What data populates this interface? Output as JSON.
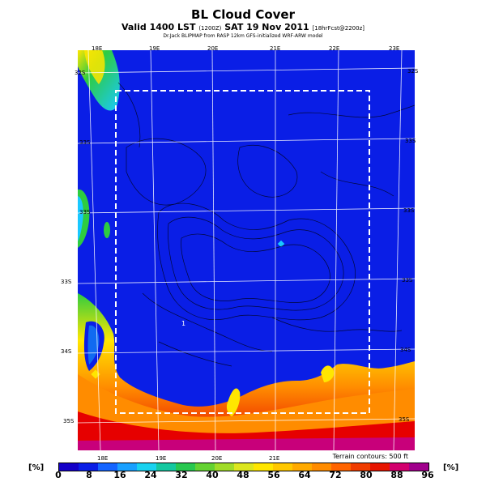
{
  "header": {
    "title": "BL Cloud Cover",
    "valid_prefix": "Valid 1400 LST",
    "valid_utc": "(1200Z)",
    "valid_date": "SAT 19 Nov 2011",
    "valid_suffix": "[18hrFcst@2200z]",
    "credit": "Dr.Jack BLIPMAP from RASP 12km GFS-initialized WRF-ARW model"
  },
  "map": {
    "lon_labels_top": [
      "18E",
      "19E",
      "20E",
      "21E",
      "22E",
      "23E"
    ],
    "lon_labels_bottom": [
      "18E",
      "19E",
      "20E",
      "21E"
    ],
    "lat_labels_left": [
      "32S",
      "33S",
      "33S",
      "33S",
      "34S",
      "35S"
    ],
    "lat_labels_right": [
      "32S",
      "33S",
      "33S",
      "33S",
      "34S",
      "35S"
    ],
    "point_label": "1",
    "terrain_note": "Terrain contours: 500 ft",
    "colors": {
      "clear": "#0a1ee6",
      "bright_blue": "#1a6cff",
      "cyan": "#19c8ff",
      "green": "#2ecc40",
      "yellow": "#ffe600",
      "orange": "#ff8c00",
      "red": "#e60000",
      "magenta": "#c8007a"
    }
  },
  "legend": {
    "unit_left": "[%]",
    "unit_right": "[%]",
    "ticks": [
      "0",
      "8",
      "16",
      "24",
      "32",
      "40",
      "48",
      "56",
      "64",
      "72",
      "80",
      "88",
      "96"
    ],
    "colors": [
      "#1400c8",
      "#0a1ee6",
      "#1464ff",
      "#19a0ff",
      "#19d2f0",
      "#14c8a0",
      "#28c850",
      "#64d232",
      "#a0dc28",
      "#dce61e",
      "#ffe600",
      "#ffc800",
      "#ffaa00",
      "#ff8c00",
      "#ff6400",
      "#f03c00",
      "#e61400",
      "#d2006e",
      "#a0008c"
    ]
  }
}
